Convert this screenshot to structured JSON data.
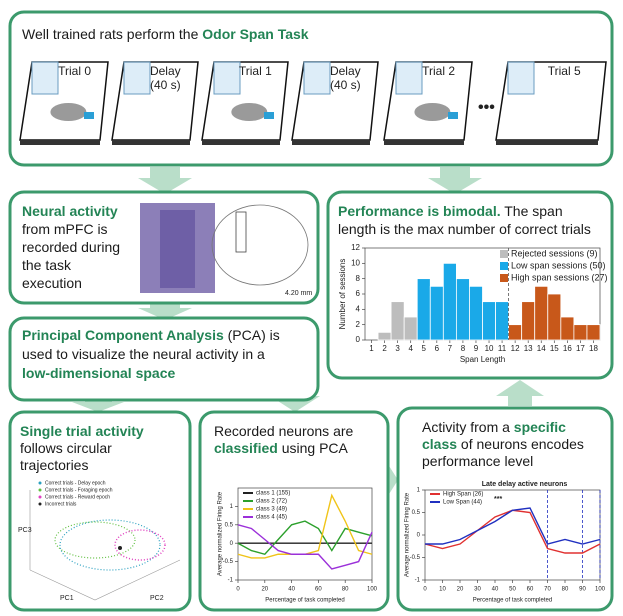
{
  "top": {
    "title": "Well trained rats perform the ",
    "title_bold": "Odor Span Task",
    "tiles": [
      [
        "Trial 0"
      ],
      [
        "Delay",
        "(40 s)"
      ],
      [
        "Trial 1"
      ],
      [
        "Delay",
        "(40 s)"
      ],
      [
        "Trial 2"
      ],
      [
        "Trial 5"
      ]
    ]
  },
  "neural": {
    "bold": "Neural activity",
    "lines": [
      "from mPFC is",
      "recorded during",
      "the task",
      "execution"
    ],
    "scale": "4.20 mm"
  },
  "pca": {
    "bold1": "Principal Component Analysis",
    "text1": " (PCA) is",
    "line2": "used to visualize the neural activity in a",
    "bold3": "low-dimensional space"
  },
  "single": {
    "bold": "Single trial activity",
    "lines": [
      "follows circular",
      "trajectories"
    ],
    "legend": [
      "Correct trials - Delay epoch",
      "Correct trials - Foraging epoch",
      "Correct trials - Reward epoch",
      "Incorrect trials"
    ],
    "axes": [
      "PC1",
      "PC2",
      "PC3"
    ]
  },
  "classes_text": {
    "line1": "Recorded neurons are",
    "bold2": "classified",
    "text2": " using PCA"
  },
  "activity_text": {
    "text1": "Activity from a ",
    "bold1": "specific",
    "bold2": "class",
    "text2": " of neurons encodes",
    "line3": "performance level"
  },
  "performance": {
    "bold": "Performance is bimodal.",
    "text1": " The span",
    "line2": "length is the max number of correct trials"
  },
  "chart_data": [
    {
      "type": "histogram",
      "x_label": "Span Length",
      "y_label": "Number of sessions",
      "xlim": [
        0.5,
        18.5
      ],
      "xticks": [
        1,
        2,
        3,
        4,
        5,
        6,
        7,
        8,
        9,
        10,
        11,
        12,
        13,
        14,
        15,
        16,
        17,
        18
      ],
      "ylim": [
        0,
        12
      ],
      "yticks": [
        0,
        2,
        4,
        6,
        8,
        10,
        12
      ],
      "dashed_line_x": 11.5,
      "series": [
        {
          "name": "Rejected sessions (9)",
          "color": "#bdbdbd",
          "x": [
            2,
            3,
            4
          ],
          "values": [
            1,
            5,
            3
          ]
        },
        {
          "name": "Low span sessions (50)",
          "color": "#1aa9e8",
          "x": [
            5,
            6,
            7,
            8,
            9,
            10,
            11
          ],
          "values": [
            8,
            7,
            10,
            8,
            7,
            5,
            5
          ]
        },
        {
          "name": "High span sessions (27)",
          "color": "#c8581a",
          "x": [
            12,
            13,
            14,
            15,
            16,
            17,
            18
          ],
          "values": [
            2,
            5,
            7,
            6,
            3,
            2,
            2
          ]
        }
      ]
    },
    {
      "type": "line",
      "x_label": "Percentage of task completed",
      "y_label": "Average normalized Firing Rate",
      "xlim": [
        0,
        100
      ],
      "xticks": [
        0,
        20,
        40,
        60,
        80,
        100
      ],
      "ylim": [
        -1,
        1.5
      ],
      "yticks": [
        -1,
        -0.5,
        0,
        0.5,
        1
      ],
      "x": [
        0,
        10,
        20,
        30,
        40,
        50,
        60,
        70,
        80,
        90,
        100
      ],
      "series": [
        {
          "name": "class 1 (155)",
          "color": "#222222",
          "values": [
            0,
            0,
            0,
            0,
            0,
            0,
            0,
            0,
            0,
            0,
            0
          ]
        },
        {
          "name": "class 2 (72)",
          "color": "#2ca02c",
          "values": [
            0,
            -0.2,
            -0.3,
            0.1,
            0.5,
            0.6,
            0.4,
            -0.2,
            0.4,
            0.3,
            0.2
          ]
        },
        {
          "name": "class 3 (49)",
          "color": "#f0c419",
          "values": [
            -0.3,
            -0.4,
            -0.4,
            -0.3,
            -0.3,
            -0.3,
            -0.2,
            1.3,
            0.6,
            -0.2,
            -0.3
          ]
        },
        {
          "name": "class 4 (45)",
          "color": "#9b30d9",
          "values": [
            0.5,
            0.4,
            0.1,
            -0.2,
            -0.3,
            -0.3,
            -0.3,
            -0.7,
            -0.6,
            -0.5,
            0.3
          ]
        }
      ]
    },
    {
      "type": "line",
      "title": "Late delay active neurons",
      "annotation": "***",
      "x_label": "Percentage of task completed",
      "y_label": "Average normalized Firing Rate",
      "xlim": [
        0,
        100
      ],
      "xticks": [
        0,
        10,
        20,
        30,
        40,
        50,
        60,
        70,
        80,
        90,
        100
      ],
      "ylim": [
        -1,
        1
      ],
      "yticks": [
        -1,
        -0.5,
        0,
        0.5,
        1
      ],
      "vlines": [
        70,
        90,
        100
      ],
      "x": [
        0,
        10,
        20,
        30,
        40,
        50,
        60,
        70,
        80,
        90,
        100
      ],
      "series": [
        {
          "name": "High Span (26)",
          "color": "#e03030",
          "values": [
            -0.2,
            -0.3,
            -0.2,
            0.1,
            0.4,
            0.55,
            0.5,
            -0.3,
            -0.4,
            -0.4,
            -0.2
          ]
        },
        {
          "name": "Low Span (44)",
          "color": "#2030c0",
          "values": [
            -0.2,
            -0.2,
            -0.1,
            0.1,
            0.3,
            0.55,
            0.6,
            -0.2,
            -0.1,
            -0.2,
            -0.1
          ]
        }
      ]
    }
  ]
}
